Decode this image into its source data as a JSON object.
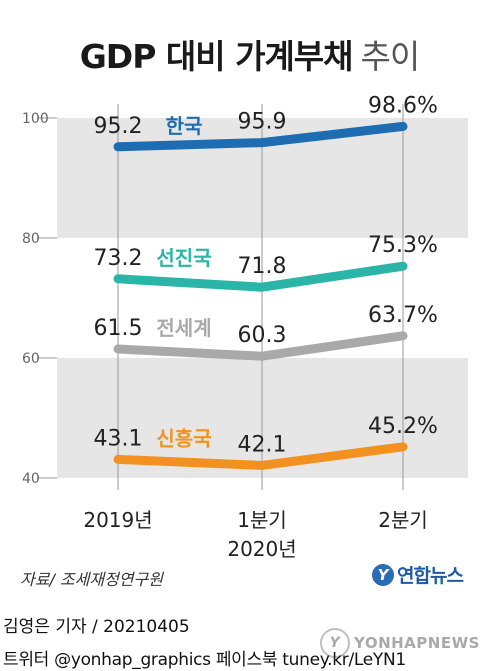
{
  "title": {
    "main": "GDP 대비 가계부채",
    "sub": "추이"
  },
  "chart_data": {
    "type": "line",
    "categories": [
      "2019년",
      "1분기",
      "2분기"
    ],
    "category_sublabels": [
      "",
      "2020년",
      ""
    ],
    "y_ticks": [
      40,
      60,
      80,
      100
    ],
    "ylim": [
      40,
      100
    ],
    "grid": "alternating horizontal bands",
    "series": [
      {
        "name": "한국",
        "values": [
          95.2,
          95.9,
          98.6
        ],
        "labels": [
          "95.2",
          "95.9",
          "98.6%"
        ],
        "color": "#1e6db3"
      },
      {
        "name": "선진국",
        "values": [
          73.2,
          71.8,
          75.3
        ],
        "labels": [
          "73.2",
          "71.8",
          "75.3%"
        ],
        "color": "#2bb5a8"
      },
      {
        "name": "전세계",
        "values": [
          61.5,
          60.3,
          63.7
        ],
        "labels": [
          "61.5",
          "60.3",
          "63.7%"
        ],
        "color": "#a9a9a9"
      },
      {
        "name": "신흥국",
        "values": [
          43.1,
          42.1,
          45.2
        ],
        "labels": [
          "43.1",
          "42.1",
          "45.2%"
        ],
        "color": "#f2911f"
      }
    ]
  },
  "source": "자료/ 조세재정연구원",
  "logo": {
    "mark": "Y",
    "text": "연합뉴스"
  },
  "byline": "김영은 기자 / 20210405",
  "social": "트위터 @yonhap_graphics  페이스북 tuney.kr/LeYN1",
  "watermark": {
    "mark": "Y",
    "text": "YONHAPNEWS"
  }
}
